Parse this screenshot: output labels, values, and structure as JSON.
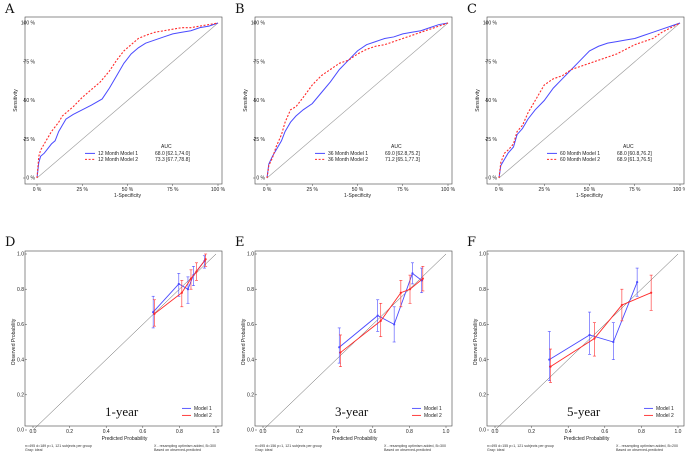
{
  "colors": {
    "model1": "#4a4aff",
    "model2": "#ff2a2a",
    "diag": "#9a9a9a"
  },
  "chart_data": [
    {
      "type": "line",
      "panel_letter": "A",
      "kind": "roc",
      "xlabel": "1-Specificity",
      "ylabel": "Sensitivity",
      "ticks_x": [
        "0 %",
        "25 %",
        "50 %",
        "75 %",
        "100 %"
      ],
      "ticks_y": [
        "0 %",
        "25 %",
        "50 %",
        "75 %",
        "100 %"
      ],
      "xlim": [
        0,
        100
      ],
      "ylim": [
        0,
        100
      ],
      "legend_header": "AUC",
      "series": [
        {
          "name": "12 Month Model 1",
          "auc": "68.0 [62.1,74.0]",
          "x": [
            0,
            1,
            2,
            4,
            6,
            8,
            10,
            12,
            14,
            16,
            20,
            25,
            30,
            36,
            40,
            44,
            48,
            52,
            56,
            60,
            65,
            70,
            75,
            80,
            85,
            90,
            95,
            100
          ],
          "y": [
            0,
            10,
            14,
            16,
            19,
            22,
            24,
            30,
            34,
            38,
            41,
            44,
            47,
            51,
            58,
            66,
            74,
            80,
            84,
            87,
            89,
            91,
            93,
            94,
            95,
            97,
            98,
            100
          ]
        },
        {
          "name": "12 Month Model 2",
          "auc": "73.3 [67.7,78.8]",
          "x": [
            0,
            1,
            2,
            4,
            6,
            8,
            10,
            12,
            14,
            16,
            20,
            25,
            30,
            35,
            40,
            44,
            48,
            52,
            56,
            60,
            65,
            70,
            75,
            80,
            85,
            90,
            95,
            100
          ],
          "y": [
            0,
            14,
            18,
            22,
            26,
            30,
            33,
            36,
            40,
            42,
            46,
            52,
            57,
            62,
            69,
            76,
            82,
            86,
            90,
            92,
            94,
            95,
            96,
            97,
            97,
            98,
            99,
            100
          ]
        }
      ]
    },
    {
      "type": "line",
      "panel_letter": "B",
      "kind": "roc",
      "xlabel": "1-Specificity",
      "ylabel": "Sensitivity",
      "ticks_x": [
        "0 %",
        "25 %",
        "50 %",
        "75 %",
        "100 %"
      ],
      "ticks_y": [
        "0 %",
        "25 %",
        "50 %",
        "75 %",
        "100 %"
      ],
      "xlim": [
        0,
        100
      ],
      "ylim": [
        0,
        100
      ],
      "legend_header": "AUC",
      "series": [
        {
          "name": "36 Month Model 1",
          "auc": "69.0 [62.8,75.2]",
          "x": [
            0,
            1,
            3,
            5,
            8,
            10,
            13,
            16,
            20,
            25,
            30,
            35,
            40,
            45,
            50,
            55,
            60,
            65,
            70,
            75,
            80,
            85,
            90,
            95,
            100
          ],
          "y": [
            0,
            9,
            14,
            18,
            24,
            30,
            36,
            40,
            44,
            48,
            55,
            62,
            70,
            76,
            82,
            86,
            88,
            90,
            91,
            93,
            94,
            95,
            97,
            99,
            100
          ]
        },
        {
          "name": "36 Month Model 2",
          "auc": "71.2 [65.1,77.3]",
          "x": [
            0,
            1,
            3,
            5,
            8,
            10,
            13,
            16,
            20,
            25,
            30,
            35,
            40,
            45,
            50,
            55,
            60,
            65,
            70,
            75,
            80,
            85,
            90,
            95,
            100
          ],
          "y": [
            0,
            8,
            13,
            20,
            28,
            36,
            44,
            46,
            52,
            60,
            66,
            70,
            74,
            76,
            80,
            83,
            85,
            86,
            88,
            90,
            92,
            94,
            96,
            98,
            100
          ]
        }
      ]
    },
    {
      "type": "line",
      "panel_letter": "C",
      "kind": "roc",
      "xlabel": "1-Specificity",
      "ylabel": "Sensitivity",
      "ticks_x": [
        "0 %",
        "25 %",
        "50 %",
        "75 %",
        "100 %"
      ],
      "ticks_y": [
        "0 %",
        "25 %",
        "50 %",
        "75 %",
        "100 %"
      ],
      "xlim": [
        0,
        100
      ],
      "ylim": [
        0,
        100
      ],
      "legend_header": "AUC",
      "series": [
        {
          "name": "60 Month Model 1",
          "auc": "68.0 [60.8,76.2]",
          "x": [
            0,
            1,
            3,
            5,
            8,
            10,
            13,
            16,
            20,
            25,
            30,
            35,
            40,
            45,
            50,
            55,
            60,
            65,
            70,
            75,
            80,
            85,
            90,
            95,
            100
          ],
          "y": [
            0,
            8,
            12,
            16,
            20,
            28,
            32,
            38,
            44,
            50,
            58,
            64,
            70,
            76,
            82,
            85,
            87,
            88,
            89,
            90,
            92,
            94,
            96,
            98,
            100
          ]
        },
        {
          "name": "60 Month Model 2",
          "auc": "68.9 [61.3,76.5]",
          "x": [
            0,
            1,
            3,
            5,
            8,
            10,
            13,
            16,
            20,
            25,
            30,
            35,
            40,
            45,
            50,
            55,
            60,
            65,
            70,
            75,
            80,
            85,
            90,
            95,
            100
          ],
          "y": [
            0,
            10,
            16,
            18,
            22,
            30,
            34,
            42,
            50,
            60,
            64,
            66,
            70,
            72,
            74,
            76,
            78,
            80,
            83,
            86,
            88,
            90,
            94,
            97,
            100
          ]
        }
      ]
    },
    {
      "type": "line",
      "panel_letter": "D",
      "kind": "calibration",
      "big_label": "1-year",
      "xlabel": "Predicted Probability",
      "ylabel": "Observed Probability",
      "ticks_x": [
        "0.0",
        "0.2",
        "0.4",
        "0.6",
        "0.8",
        "1.0"
      ],
      "ticks_y": [
        "0.0",
        "0.2",
        "0.4",
        "0.6",
        "0.8",
        "1.0"
      ],
      "xlim": [
        0,
        1
      ],
      "ylim": [
        0,
        1
      ],
      "note_left": [
        "n=495 d=189 p=1, 121 subjects per group",
        "Gray: ideal"
      ],
      "note_right": [
        "X - resampling optimism added, B=300",
        "Based on observed-predicted"
      ],
      "series": [
        {
          "name": "Model 1",
          "x": [
            0.66,
            0.8,
            0.85,
            0.88,
            0.94
          ],
          "y": [
            0.67,
            0.83,
            0.8,
            0.88,
            0.96
          ],
          "lo": [
            0.58,
            0.76,
            0.72,
            0.82,
            0.92
          ],
          "hi": [
            0.76,
            0.89,
            0.87,
            0.93,
            0.99
          ]
        },
        {
          "name": "Model 2",
          "x": [
            0.66,
            0.81,
            0.86,
            0.89,
            0.94
          ],
          "y": [
            0.66,
            0.78,
            0.86,
            0.9,
            0.97
          ],
          "lo": [
            0.59,
            0.7,
            0.8,
            0.85,
            0.93
          ],
          "hi": [
            0.74,
            0.85,
            0.91,
            0.95,
            1.0
          ]
        }
      ]
    },
    {
      "type": "line",
      "panel_letter": "E",
      "kind": "calibration",
      "big_label": "3-year",
      "xlabel": "Predicted Probability",
      "ylabel": "Observed Probability",
      "ticks_x": [
        "0.0",
        "0.2",
        "0.4",
        "0.6",
        "0.8",
        "1.0"
      ],
      "ticks_y": [
        "0.0",
        "0.2",
        "0.4",
        "0.6",
        "0.8",
        "1.0"
      ],
      "xlim": [
        0,
        1
      ],
      "ylim": [
        0,
        1
      ],
      "note_left": [
        "n=495 d=156 p=1, 121 subjects per group",
        "Gray: ideal"
      ],
      "note_right": [
        "X - resampling optimism added, B=300",
        "Based on observed-predicted"
      ],
      "series": [
        {
          "name": "Model 1",
          "x": [
            0.42,
            0.63,
            0.72,
            0.82,
            0.87
          ],
          "y": [
            0.47,
            0.65,
            0.6,
            0.89,
            0.85
          ],
          "lo": [
            0.38,
            0.56,
            0.5,
            0.83,
            0.78
          ],
          "hi": [
            0.58,
            0.74,
            0.7,
            0.95,
            0.92
          ]
        },
        {
          "name": "Model 2",
          "x": [
            0.42,
            0.64,
            0.75,
            0.8,
            0.87
          ],
          "y": [
            0.44,
            0.62,
            0.78,
            0.8,
            0.86
          ],
          "lo": [
            0.36,
            0.53,
            0.7,
            0.72,
            0.79
          ],
          "hi": [
            0.54,
            0.72,
            0.85,
            0.88,
            0.93
          ]
        }
      ]
    },
    {
      "type": "line",
      "panel_letter": "F",
      "kind": "calibration",
      "big_label": "5-year",
      "xlabel": "Predicted Probability",
      "ylabel": "Observed Probability",
      "ticks_x": [
        "0.0",
        "0.2",
        "0.4",
        "0.6",
        "0.8",
        "1.0"
      ],
      "ticks_y": [
        "0.0",
        "0.2",
        "0.4",
        "0.6",
        "0.8",
        "1.0"
      ],
      "xlim": [
        0,
        1
      ],
      "ylim": [
        0,
        1
      ],
      "note_left": [
        "n=495 d=155 p=1, 121 subjects per group",
        "Gray: ideal"
      ],
      "note_right": [
        "X - resampling optimism added, B=200",
        "Based on observed-predicted"
      ],
      "series": [
        {
          "name": "Model 1",
          "x": [
            0.3,
            0.52,
            0.65,
            0.78
          ],
          "y": [
            0.4,
            0.54,
            0.5,
            0.84
          ],
          "lo": [
            0.28,
            0.43,
            0.4,
            0.76
          ],
          "hi": [
            0.56,
            0.67,
            0.61,
            0.92
          ]
        },
        {
          "name": "Model 2",
          "x": [
            0.3,
            0.54,
            0.69,
            0.85
          ],
          "y": [
            0.36,
            0.52,
            0.71,
            0.78
          ],
          "lo": [
            0.27,
            0.42,
            0.62,
            0.68
          ],
          "hi": [
            0.46,
            0.61,
            0.8,
            0.88
          ]
        }
      ]
    }
  ]
}
